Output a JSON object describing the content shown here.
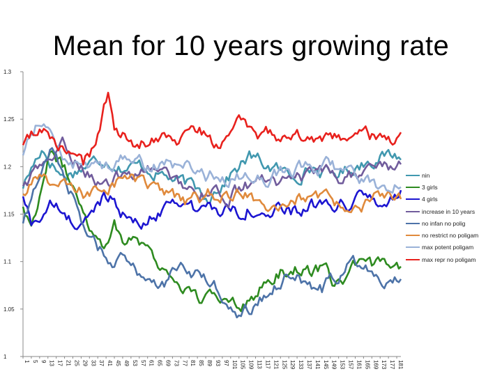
{
  "chart_data": {
    "type": "line",
    "title": "Mean for 10 years growing rate",
    "xlabel": "",
    "ylabel": "",
    "ylim": [
      1,
      1.3
    ],
    "yticks": [
      "1",
      "1.05",
      "1.1",
      "1.15",
      "1.2",
      "1.25",
      "1.3"
    ],
    "xticks": [
      "1",
      "5",
      "9",
      "13",
      "17",
      "21",
      "25",
      "29",
      "33",
      "37",
      "41",
      "45",
      "49",
      "53",
      "57",
      "61",
      "65",
      "69",
      "73",
      "77",
      "81",
      "85",
      "89",
      "93",
      "97",
      "101",
      "105",
      "109",
      "113",
      "117",
      "121",
      "125",
      "129",
      "133",
      "137",
      "141",
      "145",
      "149",
      "153",
      "157",
      "161",
      "165",
      "169",
      "173",
      "177",
      "181"
    ],
    "x_range": [
      1,
      183
    ],
    "legend_position": "right",
    "series": [
      {
        "name": "nin",
        "color": "#4198AF",
        "knots": [
          [
            1,
            1.18
          ],
          [
            10,
            1.22
          ],
          [
            20,
            1.19
          ],
          [
            30,
            1.2
          ],
          [
            40,
            1.21
          ],
          [
            50,
            1.2
          ],
          [
            60,
            1.2
          ],
          [
            70,
            1.19
          ],
          [
            80,
            1.18
          ],
          [
            90,
            1.17
          ],
          [
            100,
            1.19
          ],
          [
            110,
            1.21
          ],
          [
            120,
            1.2
          ],
          [
            130,
            1.19
          ],
          [
            140,
            1.2
          ],
          [
            150,
            1.19
          ],
          [
            160,
            1.2
          ],
          [
            170,
            1.21
          ],
          [
            183,
            1.212
          ]
        ]
      },
      {
        "name": "3 girls",
        "color": "#2E8B20",
        "knots": [
          [
            1,
            1.16
          ],
          [
            5,
            1.14
          ],
          [
            10,
            1.18
          ],
          [
            15,
            1.22
          ],
          [
            20,
            1.2
          ],
          [
            25,
            1.18
          ],
          [
            30,
            1.16
          ],
          [
            35,
            1.13
          ],
          [
            40,
            1.12
          ],
          [
            45,
            1.14
          ],
          [
            50,
            1.12
          ],
          [
            55,
            1.13
          ],
          [
            60,
            1.12
          ],
          [
            65,
            1.1
          ],
          [
            70,
            1.09
          ],
          [
            75,
            1.08
          ],
          [
            80,
            1.07
          ],
          [
            85,
            1.06
          ],
          [
            90,
            1.06
          ],
          [
            95,
            1.06
          ],
          [
            100,
            1.065
          ],
          [
            105,
            1.06
          ],
          [
            110,
            1.06
          ],
          [
            115,
            1.07
          ],
          [
            120,
            1.08
          ],
          [
            125,
            1.09
          ],
          [
            130,
            1.09
          ],
          [
            135,
            1.095
          ],
          [
            140,
            1.09
          ],
          [
            145,
            1.09
          ],
          [
            150,
            1.08
          ],
          [
            155,
            1.08
          ],
          [
            160,
            1.09
          ],
          [
            165,
            1.095
          ],
          [
            170,
            1.09
          ],
          [
            175,
            1.1
          ],
          [
            180,
            1.105
          ],
          [
            183,
            1.1
          ]
        ]
      },
      {
        "name": "4 girls",
        "color": "#1C15D1",
        "knots": [
          [
            1,
            1.17
          ],
          [
            5,
            1.14
          ],
          [
            10,
            1.15
          ],
          [
            15,
            1.16
          ],
          [
            20,
            1.15
          ],
          [
            25,
            1.14
          ],
          [
            30,
            1.14
          ],
          [
            35,
            1.15
          ],
          [
            40,
            1.17
          ],
          [
            45,
            1.17
          ],
          [
            50,
            1.15
          ],
          [
            55,
            1.14
          ],
          [
            60,
            1.14
          ],
          [
            65,
            1.15
          ],
          [
            70,
            1.16
          ],
          [
            75,
            1.17
          ],
          [
            80,
            1.16
          ],
          [
            85,
            1.15
          ],
          [
            90,
            1.16
          ],
          [
            95,
            1.15
          ],
          [
            100,
            1.16
          ],
          [
            105,
            1.155
          ],
          [
            110,
            1.16
          ],
          [
            115,
            1.15
          ],
          [
            120,
            1.15
          ],
          [
            125,
            1.155
          ],
          [
            130,
            1.15
          ],
          [
            135,
            1.155
          ],
          [
            140,
            1.16
          ],
          [
            145,
            1.155
          ],
          [
            150,
            1.15
          ],
          [
            155,
            1.16
          ],
          [
            160,
            1.16
          ],
          [
            165,
            1.17
          ],
          [
            170,
            1.165
          ],
          [
            175,
            1.16
          ],
          [
            183,
            1.17
          ]
        ]
      },
      {
        "name": "increase in 10 years",
        "color": "#715C9C",
        "knots": [
          [
            1,
            1.18
          ],
          [
            10,
            1.2
          ],
          [
            20,
            1.22
          ],
          [
            30,
            1.2
          ],
          [
            40,
            1.18
          ],
          [
            50,
            1.19
          ],
          [
            60,
            1.2
          ],
          [
            70,
            1.19
          ],
          [
            80,
            1.18
          ],
          [
            90,
            1.17
          ],
          [
            100,
            1.17
          ],
          [
            110,
            1.18
          ],
          [
            120,
            1.19
          ],
          [
            130,
            1.18
          ],
          [
            140,
            1.19
          ],
          [
            150,
            1.19
          ],
          [
            160,
            1.19
          ],
          [
            170,
            1.2
          ],
          [
            183,
            1.2
          ]
        ]
      },
      {
        "name": "no infan no polig",
        "color": "#4D73A8",
        "knots": [
          [
            1,
            1.14
          ],
          [
            5,
            1.16
          ],
          [
            10,
            1.2
          ],
          [
            15,
            1.22
          ],
          [
            20,
            1.2
          ],
          [
            25,
            1.17
          ],
          [
            30,
            1.14
          ],
          [
            35,
            1.12
          ],
          [
            40,
            1.11
          ],
          [
            45,
            1.1
          ],
          [
            50,
            1.1
          ],
          [
            55,
            1.09
          ],
          [
            60,
            1.085
          ],
          [
            65,
            1.08
          ],
          [
            70,
            1.08
          ],
          [
            75,
            1.09
          ],
          [
            80,
            1.09
          ],
          [
            85,
            1.085
          ],
          [
            90,
            1.08
          ],
          [
            95,
            1.07
          ],
          [
            100,
            1.06
          ],
          [
            105,
            1.05
          ],
          [
            110,
            1.05
          ],
          [
            115,
            1.06
          ],
          [
            120,
            1.07
          ],
          [
            125,
            1.08
          ],
          [
            130,
            1.09
          ],
          [
            135,
            1.08
          ],
          [
            140,
            1.075
          ],
          [
            145,
            1.07
          ],
          [
            150,
            1.08
          ],
          [
            155,
            1.09
          ],
          [
            160,
            1.1
          ],
          [
            165,
            1.1
          ],
          [
            170,
            1.09
          ],
          [
            175,
            1.085
          ],
          [
            183,
            1.08
          ]
        ]
      },
      {
        "name": "no restrict no poligam",
        "color": "#E08A3C",
        "knots": [
          [
            1,
            1.17
          ],
          [
            10,
            1.19
          ],
          [
            20,
            1.18
          ],
          [
            30,
            1.17
          ],
          [
            40,
            1.18
          ],
          [
            50,
            1.19
          ],
          [
            60,
            1.18
          ],
          [
            70,
            1.17
          ],
          [
            80,
            1.16
          ],
          [
            90,
            1.17
          ],
          [
            100,
            1.17
          ],
          [
            110,
            1.17
          ],
          [
            120,
            1.16
          ],
          [
            130,
            1.17
          ],
          [
            140,
            1.165
          ],
          [
            150,
            1.16
          ],
          [
            160,
            1.16
          ],
          [
            170,
            1.165
          ],
          [
            183,
            1.165
          ]
        ]
      },
      {
        "name": "max potent poligam",
        "color": "#9AB2D8",
        "knots": [
          [
            1,
            1.21
          ],
          [
            5,
            1.24
          ],
          [
            10,
            1.25
          ],
          [
            15,
            1.23
          ],
          [
            20,
            1.21
          ],
          [
            30,
            1.2
          ],
          [
            40,
            1.2
          ],
          [
            50,
            1.21
          ],
          [
            60,
            1.2
          ],
          [
            70,
            1.2
          ],
          [
            80,
            1.2
          ],
          [
            90,
            1.19
          ],
          [
            100,
            1.19
          ],
          [
            110,
            1.19
          ],
          [
            120,
            1.19
          ],
          [
            130,
            1.195
          ],
          [
            140,
            1.2
          ],
          [
            150,
            1.2
          ],
          [
            160,
            1.19
          ],
          [
            170,
            1.18
          ],
          [
            183,
            1.18
          ]
        ]
      },
      {
        "name": "max repr no poligam",
        "color": "#E8211D",
        "knots": [
          [
            1,
            1.22
          ],
          [
            5,
            1.23
          ],
          [
            10,
            1.24
          ],
          [
            15,
            1.23
          ],
          [
            20,
            1.22
          ],
          [
            25,
            1.21
          ],
          [
            30,
            1.2
          ],
          [
            35,
            1.22
          ],
          [
            40,
            1.26
          ],
          [
            42,
            1.27
          ],
          [
            45,
            1.24
          ],
          [
            50,
            1.23
          ],
          [
            55,
            1.22
          ],
          [
            60,
            1.225
          ],
          [
            65,
            1.23
          ],
          [
            70,
            1.235
          ],
          [
            75,
            1.23
          ],
          [
            80,
            1.235
          ],
          [
            85,
            1.24
          ],
          [
            90,
            1.23
          ],
          [
            95,
            1.22
          ],
          [
            100,
            1.24
          ],
          [
            105,
            1.245
          ],
          [
            110,
            1.235
          ],
          [
            115,
            1.23
          ],
          [
            120,
            1.235
          ],
          [
            125,
            1.23
          ],
          [
            130,
            1.225
          ],
          [
            135,
            1.23
          ],
          [
            140,
            1.225
          ],
          [
            145,
            1.22
          ],
          [
            150,
            1.225
          ],
          [
            155,
            1.23
          ],
          [
            160,
            1.235
          ],
          [
            165,
            1.23
          ],
          [
            170,
            1.23
          ],
          [
            175,
            1.228
          ],
          [
            183,
            1.227
          ]
        ]
      }
    ]
  }
}
